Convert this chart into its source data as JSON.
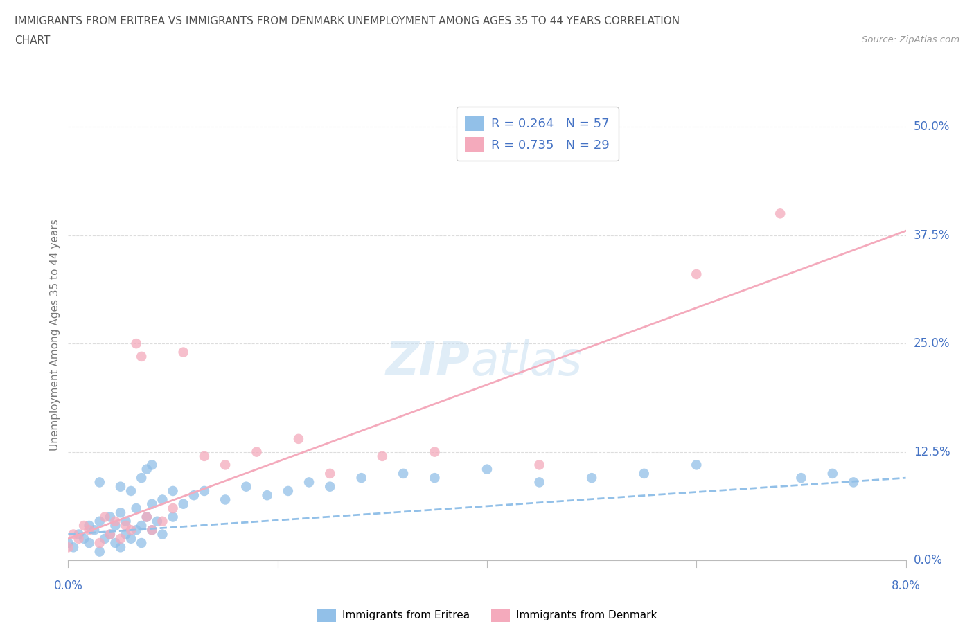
{
  "title_line1": "IMMIGRANTS FROM ERITREA VS IMMIGRANTS FROM DENMARK UNEMPLOYMENT AMONG AGES 35 TO 44 YEARS CORRELATION",
  "title_line2": "CHART",
  "source": "Source: ZipAtlas.com",
  "ylabel": "Unemployment Among Ages 35 to 44 years",
  "yticks_labels": [
    "0.0%",
    "12.5%",
    "25.0%",
    "37.5%",
    "50.0%"
  ],
  "ytick_vals": [
    0.0,
    12.5,
    25.0,
    37.5,
    50.0
  ],
  "xticks_labels": [
    "0.0%",
    "8.0%"
  ],
  "xtick_vals": [
    0.0,
    8.0
  ],
  "xmin": 0.0,
  "xmax": 8.0,
  "ymin": 0.0,
  "ymax": 52.0,
  "legend_eritrea_label": "Immigrants from Eritrea",
  "legend_denmark_label": "Immigrants from Denmark",
  "legend_eritrea_R": "R = 0.264",
  "legend_eritrea_N": "N = 57",
  "legend_denmark_R": "R = 0.735",
  "legend_denmark_N": "N = 29",
  "color_eritrea": "#92C0E8",
  "color_denmark": "#F4AABC",
  "color_text_blue": "#4472C4",
  "background_color": "#FFFFFF",
  "grid_color": "#DDDDDD",
  "title_color": "#505050",
  "eritrea_scatter_x": [
    0.0,
    0.05,
    0.1,
    0.15,
    0.2,
    0.2,
    0.25,
    0.3,
    0.3,
    0.35,
    0.4,
    0.4,
    0.45,
    0.45,
    0.5,
    0.5,
    0.55,
    0.55,
    0.6,
    0.65,
    0.65,
    0.7,
    0.7,
    0.75,
    0.8,
    0.8,
    0.85,
    0.9,
    0.9,
    1.0,
    1.0,
    1.1,
    1.2,
    1.3,
    1.5,
    1.7,
    1.9,
    2.1,
    2.3,
    2.5,
    2.8,
    3.2,
    3.5,
    4.0,
    4.5,
    5.0,
    5.5,
    6.0,
    7.0,
    7.3,
    7.5,
    0.3,
    0.5,
    0.6,
    0.7,
    0.75,
    0.8
  ],
  "eritrea_scatter_y": [
    2.0,
    1.5,
    3.0,
    2.5,
    2.0,
    4.0,
    3.5,
    1.0,
    4.5,
    2.5,
    3.0,
    5.0,
    2.0,
    4.0,
    1.5,
    5.5,
    3.0,
    4.5,
    2.5,
    3.5,
    6.0,
    4.0,
    2.0,
    5.0,
    3.5,
    6.5,
    4.5,
    3.0,
    7.0,
    5.0,
    8.0,
    6.5,
    7.5,
    8.0,
    7.0,
    8.5,
    7.5,
    8.0,
    9.0,
    8.5,
    9.5,
    10.0,
    9.5,
    10.5,
    9.0,
    9.5,
    10.0,
    11.0,
    9.5,
    10.0,
    9.0,
    9.0,
    8.5,
    8.0,
    9.5,
    10.5,
    11.0
  ],
  "denmark_scatter_x": [
    0.0,
    0.05,
    0.1,
    0.15,
    0.2,
    0.3,
    0.35,
    0.4,
    0.45,
    0.5,
    0.55,
    0.6,
    0.65,
    0.7,
    0.75,
    0.8,
    0.9,
    1.0,
    1.1,
    1.3,
    1.5,
    1.8,
    2.2,
    2.5,
    3.0,
    3.5,
    4.5,
    6.0,
    6.8
  ],
  "denmark_scatter_y": [
    1.5,
    3.0,
    2.5,
    4.0,
    3.5,
    2.0,
    5.0,
    3.0,
    4.5,
    2.5,
    4.0,
    3.5,
    25.0,
    23.5,
    5.0,
    3.5,
    4.5,
    6.0,
    24.0,
    12.0,
    11.0,
    12.5,
    14.0,
    10.0,
    12.0,
    12.5,
    11.0,
    33.0,
    40.0
  ],
  "eritrea_line_x": [
    0.0,
    8.0
  ],
  "eritrea_line_y": [
    3.0,
    9.5
  ],
  "denmark_line_x": [
    0.0,
    8.0
  ],
  "denmark_line_y": [
    2.5,
    38.0
  ]
}
